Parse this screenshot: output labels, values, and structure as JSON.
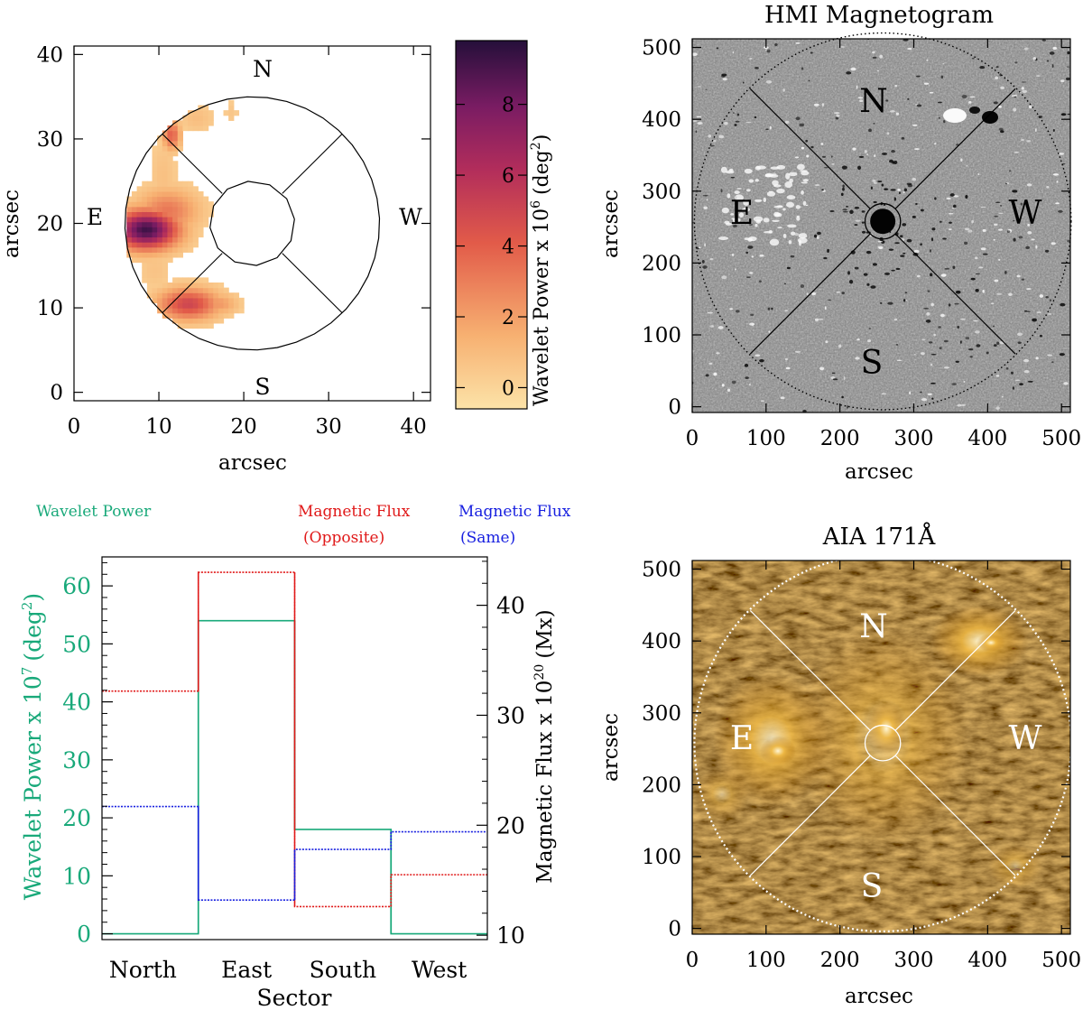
{
  "chart_data": [
    {
      "type": "heatmap",
      "id": "wavelet-power-map",
      "xlabel": "arcsec",
      "ylabel": "arcsec",
      "xlim": [
        0,
        42
      ],
      "ylim": [
        -1,
        41
      ],
      "xticks": [
        "0",
        "10",
        "20",
        "30",
        "40"
      ],
      "yticks": [
        "0",
        "10",
        "20",
        "30",
        "40"
      ],
      "direction_labels": [
        "N",
        "E",
        "W",
        "S"
      ],
      "colorbar": {
        "label": "Wavelet Power x 10",
        "exponent": "6",
        "unit": "(deg",
        "unit_exp": "2",
        "unit_close": ")",
        "range": [
          -0.6,
          9.8
        ],
        "ticks": [
          "0",
          "2",
          "4",
          "6",
          "8"
        ]
      },
      "annulus": {
        "center": [
          21,
          20
        ],
        "outer_radius": 15,
        "inner_radius": 5
      },
      "blobs": [
        {
          "x": 8.5,
          "y": 19.3,
          "sx": 2.6,
          "sy": 1.6,
          "value": 9.2
        },
        {
          "x": 11,
          "y": 21.5,
          "sx": 2.5,
          "sy": 1.8,
          "value": 3.2
        },
        {
          "x": 13.5,
          "y": 10.5,
          "sx": 2.5,
          "sy": 1.3,
          "value": 5.0
        },
        {
          "x": 17,
          "y": 10.5,
          "sx": 1.6,
          "sy": 0.9,
          "value": 2.2
        },
        {
          "x": 11.5,
          "y": 30.5,
          "sx": 0.7,
          "sy": 1.2,
          "value": 4.0
        },
        {
          "x": 14.5,
          "y": 32.5,
          "sx": 1.5,
          "sy": 1.2,
          "value": 0.9
        },
        {
          "x": 18.5,
          "y": 33.2,
          "sx": 0.6,
          "sy": 1.2,
          "value": 0.6
        },
        {
          "x": 10.5,
          "y": 25.5,
          "sx": 1.2,
          "sy": 3.5,
          "value": 0.8
        },
        {
          "x": 9.5,
          "y": 14.5,
          "sx": 1.5,
          "sy": 1.8,
          "value": 0.7
        }
      ]
    },
    {
      "type": "image",
      "id": "hmi-magnetogram",
      "title": "HMI Magnetogram",
      "xlabel": "arcsec",
      "ylabel": "arcsec",
      "xlim": [
        0,
        512
      ],
      "ylim": [
        -8,
        512
      ],
      "xticks": [
        "0",
        "100",
        "200",
        "300",
        "400",
        "500"
      ],
      "yticks": [
        "0",
        "100",
        "200",
        "300",
        "400",
        "500"
      ],
      "direction_labels": [
        "N",
        "E",
        "W",
        "S"
      ],
      "circle": {
        "center": [
          258,
          258
        ],
        "radius": 255
      },
      "inner_circle": {
        "center": [
          258,
          258
        ],
        "radius": 24
      }
    },
    {
      "type": "bar",
      "id": "sector-histogram",
      "style": "step",
      "categories": [
        "North",
        "East",
        "South",
        "West"
      ],
      "xlabel": "Sector",
      "ylabel_left": "Wavelet Power x 10",
      "ylabel_left_exp": "7",
      "ylabel_left_unit": "(deg",
      "ylabel_left_unit_exp": "2",
      "ylabel_left_close": ")",
      "ylabel_right": "Magnetic Flux x 10",
      "ylabel_right_exp": "20",
      "ylabel_right_unit": "(Mx)",
      "ylim_left": [
        -1,
        65
      ],
      "ylim_right": [
        9.6,
        44.4
      ],
      "yticks_left": [
        "0",
        "10",
        "20",
        "30",
        "40",
        "50",
        "60"
      ],
      "yticks_right": [
        "10",
        "20",
        "30",
        "40"
      ],
      "series": [
        {
          "name": "Wavelet Power",
          "axis": "left",
          "color": "#19a97a",
          "values": [
            0,
            54,
            18,
            0
          ]
        },
        {
          "name": "Magnetic Flux (Opposite)",
          "axis": "right",
          "color": "#e01818",
          "values": [
            32.2,
            43.0,
            12.6,
            15.5
          ]
        },
        {
          "name": "Magnetic Flux (Same)",
          "axis": "right",
          "color": "#1820e0",
          "values": [
            21.7,
            13.2,
            17.8,
            19.4
          ]
        }
      ],
      "legend": {
        "wavelet": "Wavelet Power",
        "opposite_1": "Magnetic Flux",
        "opposite_2": "(Opposite)",
        "same_1": "Magnetic Flux",
        "same_2": "(Same)"
      }
    },
    {
      "type": "image",
      "id": "aia-171",
      "title": "AIA 171Å",
      "xlabel": "arcsec",
      "ylabel": "arcsec",
      "xlim": [
        0,
        512
      ],
      "ylim": [
        -8,
        512
      ],
      "xticks": [
        "0",
        "100",
        "200",
        "300",
        "400",
        "500"
      ],
      "yticks": [
        "0",
        "100",
        "200",
        "300",
        "400",
        "500"
      ],
      "direction_labels": [
        "N",
        "E",
        "W",
        "S"
      ],
      "circle": {
        "center": [
          258,
          258
        ],
        "radius": 255
      },
      "inner_circle": {
        "center": [
          258,
          258
        ],
        "radius": 24
      }
    }
  ]
}
